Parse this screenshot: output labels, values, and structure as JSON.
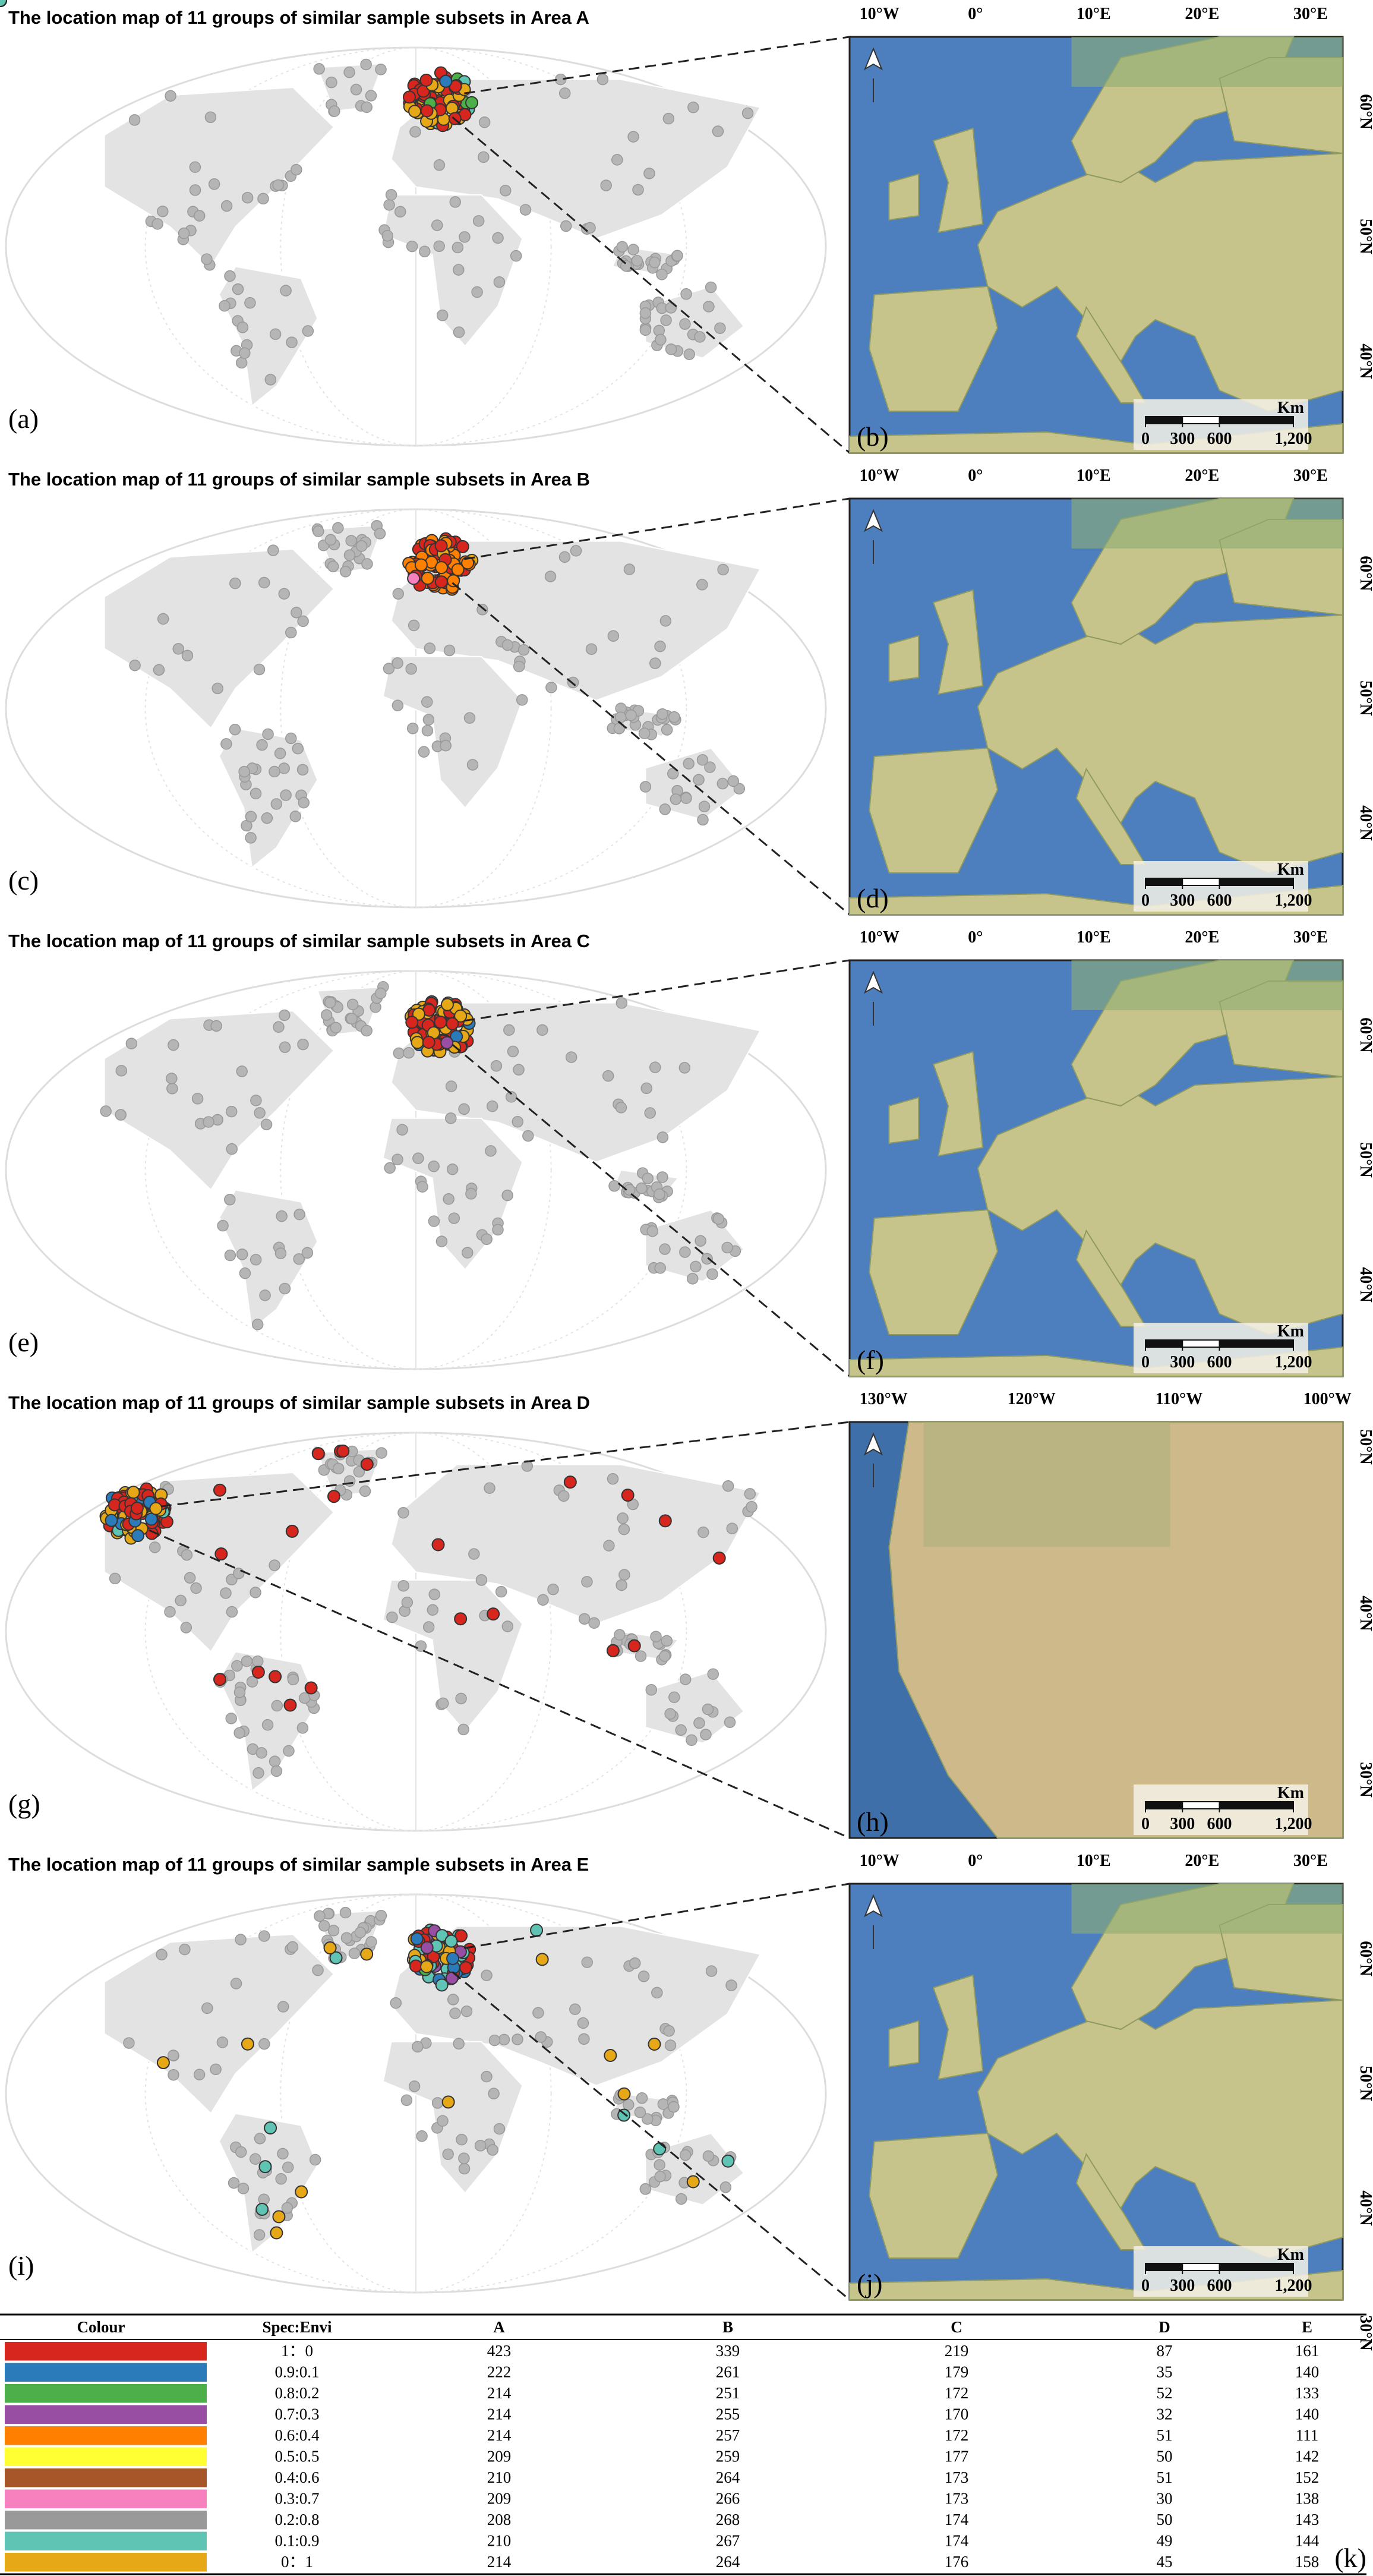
{
  "panels": [
    {
      "title": "The location map of 11 groups of similar sample subsets in Area A",
      "left_label": "(a)",
      "right_label": "(b)",
      "lon_labels": [
        "10°W",
        "0°",
        "10°E",
        "20°E",
        "30°E"
      ],
      "lat_labels": [
        "60°N",
        "50°N",
        "40°N"
      ],
      "scale": {
        "unit": "Km",
        "ticks": [
          0,
          300,
          600,
          {
            "value": 1200,
            "label": "1,200"
          }
        ]
      }
    },
    {
      "title": "The location map of 11 groups of similar sample subsets in Area B",
      "left_label": "(c)",
      "right_label": "(d)",
      "lon_labels": [
        "10°W",
        "0°",
        "10°E",
        "20°E",
        "30°E"
      ],
      "lat_labels": [
        "60°N",
        "50°N",
        "40°N"
      ],
      "scale": {
        "unit": "Km",
        "ticks": [
          0,
          300,
          600,
          {
            "value": 1200,
            "label": "1,200"
          }
        ]
      }
    },
    {
      "title": "The location map of 11 groups of similar sample subsets in Area C",
      "left_label": "(e)",
      "right_label": "(f)",
      "lon_labels": [
        "10°W",
        "0°",
        "10°E",
        "20°E",
        "30°E"
      ],
      "lat_labels": [
        "60°N",
        "50°N",
        "40°N"
      ],
      "scale": {
        "unit": "Km",
        "ticks": [
          0,
          300,
          600,
          {
            "value": 1200,
            "label": "1,200"
          }
        ]
      }
    },
    {
      "title": "The location map of 11 groups of similar sample subsets in Area D",
      "left_label": "(g)",
      "right_label": "(h)",
      "lon_labels": [
        "130°W",
        "120°W",
        "110°W",
        "100°W"
      ],
      "lat_labels": [
        "50°N",
        "40°N",
        "30°N"
      ],
      "scale": {
        "unit": "Km",
        "ticks": [
          0,
          300,
          600,
          {
            "value": 1200,
            "label": "1,200"
          }
        ]
      }
    },
    {
      "title": "The location map of 11 groups of similar sample subsets in Area E",
      "left_label": "(i)",
      "right_label": "(j)",
      "lon_labels": [
        "10°W",
        "0°",
        "10°E",
        "20°E",
        "30°E"
      ],
      "lat_labels": [
        "60°N",
        "50°N",
        "40°N",
        "30°N"
      ],
      "scale": {
        "unit": "Km",
        "ticks": [
          0,
          300,
          600,
          {
            "value": 1200,
            "label": "1,200"
          }
        ]
      }
    }
  ],
  "table": {
    "label": "(k)",
    "header": [
      "Colour",
      "Spec:Envi",
      "A",
      "B",
      "C",
      "D",
      "E"
    ],
    "rows": [
      {
        "color": "#d7261e",
        "ratio": "1：0",
        "values": [
          423,
          339,
          219,
          87,
          161
        ]
      },
      {
        "color": "#2b7bba",
        "ratio": "0.9:0.1",
        "values": [
          222,
          261,
          179,
          35,
          140
        ]
      },
      {
        "color": "#4daf4a",
        "ratio": "0.8:0.2",
        "values": [
          214,
          251,
          172,
          52,
          133
        ]
      },
      {
        "color": "#984ea3",
        "ratio": "0.7:0.3",
        "values": [
          214,
          255,
          170,
          32,
          140
        ]
      },
      {
        "color": "#ff7f00",
        "ratio": "0.6:0.4",
        "values": [
          214,
          257,
          172,
          51,
          111
        ]
      },
      {
        "color": "#ffff33",
        "ratio": "0.5:0.5",
        "values": [
          209,
          259,
          177,
          50,
          142
        ]
      },
      {
        "color": "#a65628",
        "ratio": "0.4:0.6",
        "values": [
          210,
          264,
          173,
          51,
          152
        ]
      },
      {
        "color": "#f781bf",
        "ratio": "0.3:0.7",
        "values": [
          209,
          266,
          173,
          30,
          138
        ]
      },
      {
        "color": "#999999",
        "ratio": "0.2:0.8",
        "values": [
          208,
          268,
          174,
          50,
          143
        ]
      },
      {
        "color": "#5fc4b4",
        "ratio": "0.1:0.9",
        "values": [
          210,
          267,
          174,
          49,
          144
        ]
      },
      {
        "color": "#e6a817",
        "ratio": "0：1",
        "values": [
          214,
          264,
          176,
          45,
          158
        ]
      }
    ]
  }
}
